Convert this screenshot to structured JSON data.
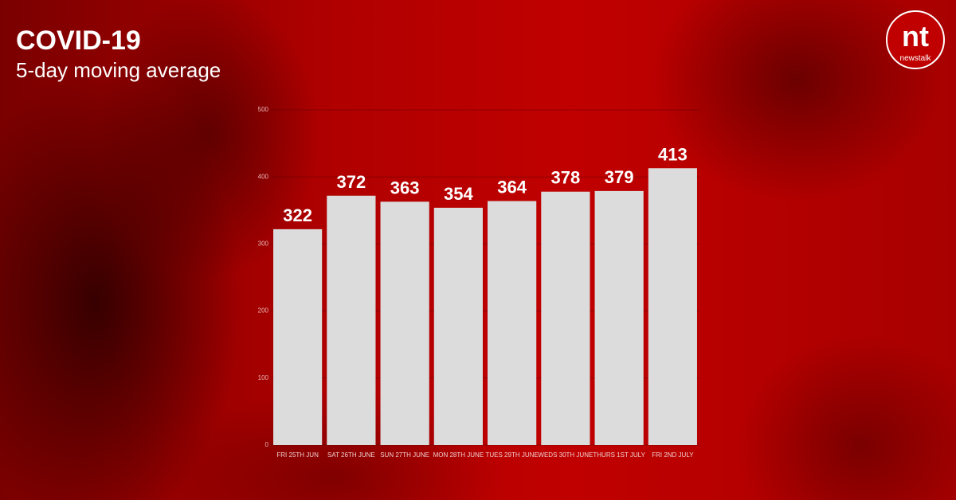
{
  "chart_data": {
    "type": "bar",
    "title": "COVID-19",
    "subtitle": "5-day moving average",
    "categories": [
      "FRI 25TH JUN",
      "SAT 26TH JUNE",
      "SUN 27TH JUNE",
      "MON 28TH JUNE",
      "TUES 29TH JUNE",
      "WEDS 30TH JUNE",
      "THURS 1ST JULY",
      "FRI 2ND JULY"
    ],
    "values": [
      322,
      372,
      363,
      354,
      364,
      378,
      379,
      413
    ],
    "color": "#dcdcdc",
    "ylim": [
      0,
      500
    ],
    "yticks": [
      0,
      100,
      200,
      300,
      400,
      500
    ],
    "grid": true
  },
  "logo": {
    "mark": "nt",
    "name": "newstalk"
  }
}
